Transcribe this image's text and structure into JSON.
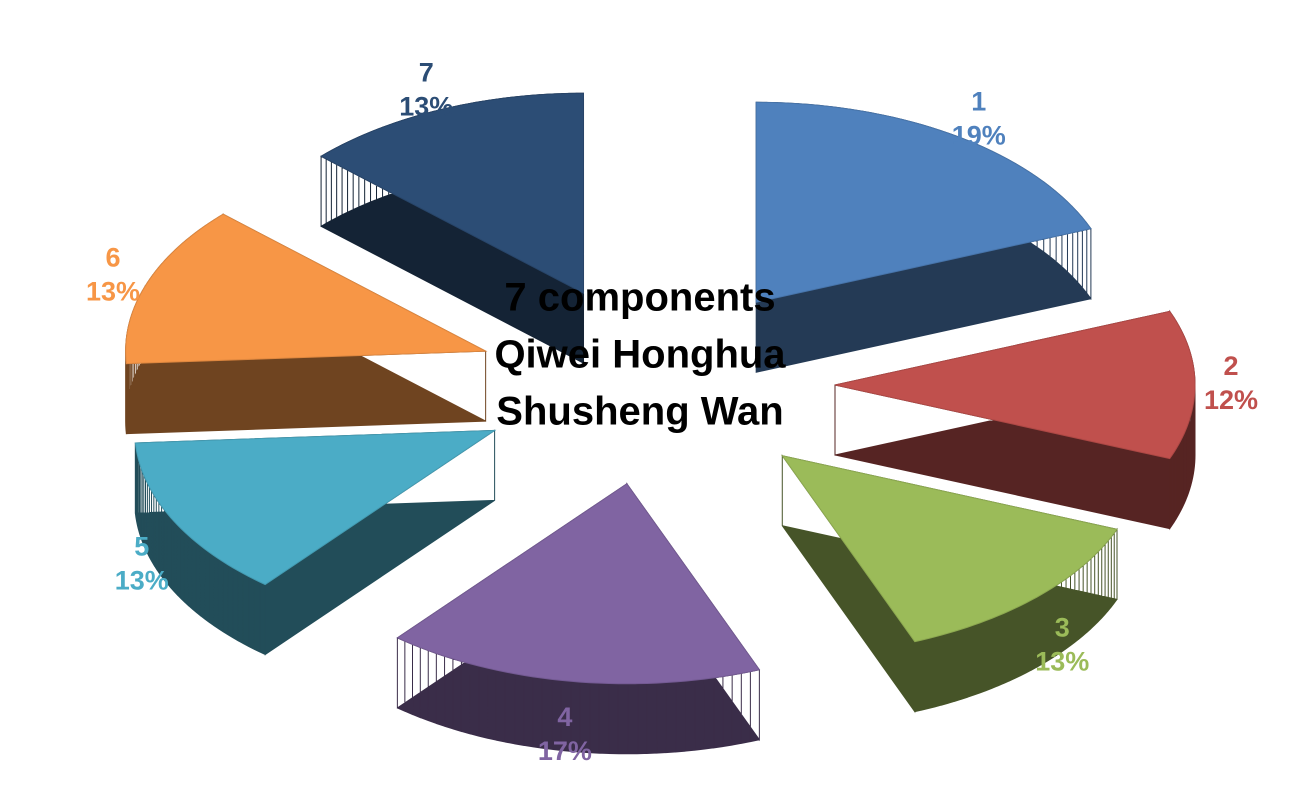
{
  "chart_data": {
    "type": "pie",
    "title": [
      "7 components",
      "Qiwei Honghua",
      "Shusheng Wan"
    ],
    "categories": [
      "1",
      "2",
      "3",
      "4",
      "5",
      "6",
      "7"
    ],
    "values": [
      19,
      12,
      13,
      17,
      13,
      13,
      13
    ],
    "value_labels": [
      "19%",
      "12%",
      "13%",
      "17%",
      "13%",
      "13%",
      "13%"
    ],
    "colors": [
      "#4f81bd",
      "#c0504d",
      "#9bbb59",
      "#8064a2",
      "#4bacc6",
      "#f79646",
      "#2c4d75"
    ]
  }
}
